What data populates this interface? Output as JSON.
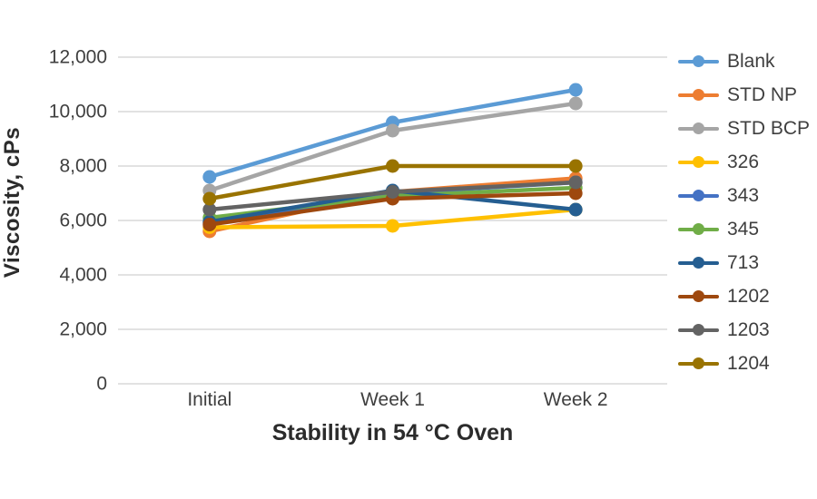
{
  "chart_data": {
    "type": "line",
    "title": "",
    "xlabel": "Stability in 54 °C Oven",
    "ylabel": "Viscosity, cPs",
    "categories": [
      "Initial",
      "Week 1",
      "Week 2"
    ],
    "ylim": [
      0,
      12000
    ],
    "ytick_step": 2000,
    "ytick_labels": [
      "0",
      "2,000",
      "4,000",
      "6,000",
      "8,000",
      "10,000",
      "12,000"
    ],
    "grid": "horizontal-only",
    "legend_position": "right",
    "gridline_color": "#d9d9d9",
    "tick_text_color": "#3f3f3f",
    "series": [
      {
        "name": "Blank",
        "color": "#5B9BD5",
        "values": [
          7600,
          9600,
          10800
        ]
      },
      {
        "name": "STD NP",
        "color": "#ED7D31",
        "values": [
          5600,
          7050,
          7550
        ]
      },
      {
        "name": "STD BCP",
        "color": "#A5A5A5",
        "values": [
          7100,
          9300,
          10300
        ]
      },
      {
        "name": "326",
        "color": "#FFC000",
        "values": [
          5750,
          5800,
          6400
        ]
      },
      {
        "name": "343",
        "color": "#4472C4",
        "values": [
          5900,
          7000,
          7400
        ]
      },
      {
        "name": "345",
        "color": "#70AD47",
        "values": [
          6100,
          6900,
          7200
        ]
      },
      {
        "name": "713",
        "color": "#255E91",
        "values": [
          5950,
          7100,
          6400
        ]
      },
      {
        "name": "1202",
        "color": "#9E480E",
        "values": [
          5850,
          6800,
          7000
        ]
      },
      {
        "name": "1203",
        "color": "#636363",
        "values": [
          6400,
          7050,
          7400
        ]
      },
      {
        "name": "1204",
        "color": "#997300",
        "values": [
          6800,
          8000,
          8000
        ]
      }
    ]
  }
}
